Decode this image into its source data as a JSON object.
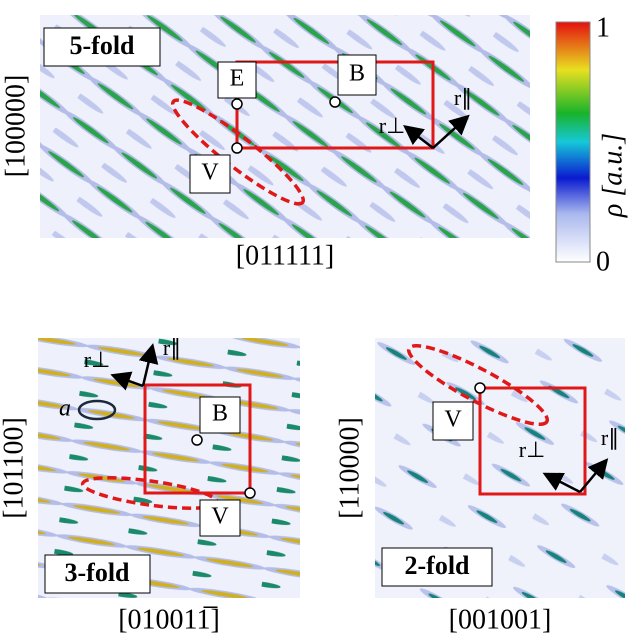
{
  "panels": [
    {
      "tag": "5-fold",
      "xlabel": "[011111]",
      "ylabel": "[100000]",
      "points": [
        "E",
        "B",
        "V"
      ],
      "r_perp": "r⊥",
      "r_par": "r∥"
    },
    {
      "tag": "3-fold",
      "xlabel": "[010011̅]",
      "ylabel": "[101100]",
      "points": [
        "B",
        "V"
      ],
      "r_perp": "r⊥",
      "r_par": "r∥",
      "marker": "a"
    },
    {
      "tag": "2-fold",
      "xlabel": "[001001]",
      "ylabel": "[110000]",
      "points": [
        "V"
      ],
      "r_perp": "r⊥",
      "r_par": "r∥"
    }
  ],
  "colorbar": {
    "label": "ρ [a.u.]",
    "ticks": [
      0,
      1
    ]
  }
}
